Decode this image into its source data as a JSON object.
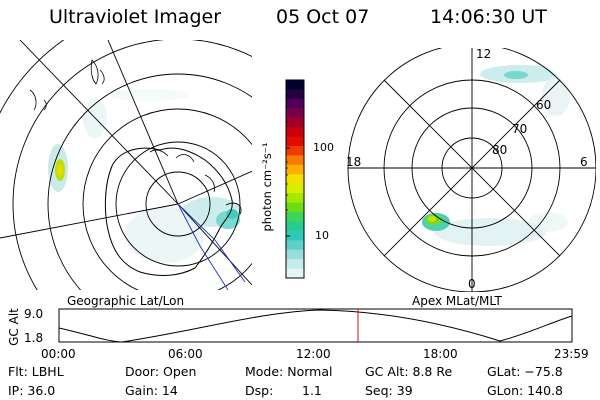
{
  "header": {
    "instrument": "Ultraviolet Imager",
    "date": "05 Oct 07",
    "time": "14:06:30 UT"
  },
  "colorbar": {
    "label": "photon cm⁻²s⁻¹",
    "ticks": [
      "100",
      "10"
    ],
    "colors": [
      "#000033",
      "#280040",
      "#50005a",
      "#780048",
      "#a0002a",
      "#c80010",
      "#e00c00",
      "#f03a00",
      "#fb7a00",
      "#fdb000",
      "#f6e000",
      "#d6f000",
      "#a6e800",
      "#6cdc14",
      "#3cd45c",
      "#28cc90",
      "#30c8b8",
      "#5ed0cc",
      "#98dcdc",
      "#c4eaea",
      "#e4f4f4"
    ]
  },
  "left_map": {
    "caption": "Geographic Lat/Lon"
  },
  "right_map": {
    "caption": "Apex MLat/MLT",
    "mlt_labels": {
      "top": "12",
      "left": "18",
      "right": "6",
      "bottom": "0"
    },
    "lat_labels": [
      "60",
      "70",
      "80"
    ]
  },
  "altitude_plot": {
    "ylabel": "GC Alt",
    "y_ticks": [
      "9.0",
      "1.8"
    ],
    "x_ticks": [
      "00:00",
      "06:00",
      "12:00",
      "18:00",
      "23:59"
    ],
    "marker_color": "#d01010"
  },
  "info": {
    "filter": "Flt: LBHL",
    "door": "Door: Open",
    "mode": "Mode: Normal",
    "gc_alt": "GC Alt: 8.8 Re",
    "glat": "GLat: −75.8",
    "ip": "IP: 36.0",
    "gain": "Gain: 14",
    "dsp_label": "Dsp:",
    "dsp_value": "1.1",
    "seq": "Seq: 39",
    "glon": "GLon: 140.8"
  }
}
